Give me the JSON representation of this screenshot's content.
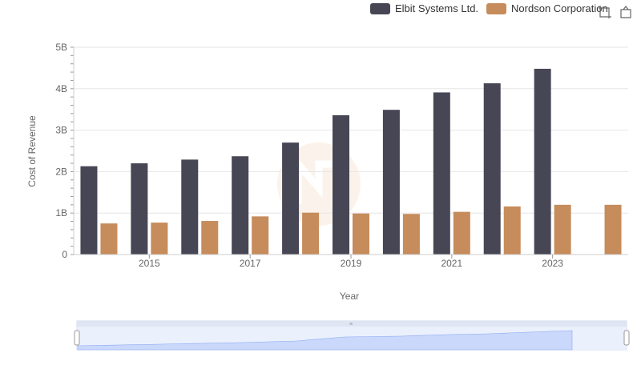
{
  "legend": {
    "items": [
      {
        "label": "Elbit Systems Ltd.",
        "color": "#474655"
      },
      {
        "label": "Nordson Corporation",
        "color": "#c68c5c"
      }
    ]
  },
  "toolbar": {
    "icons": [
      "zoom-select-icon",
      "zoom-reset-icon"
    ]
  },
  "chart_data": {
    "type": "bar",
    "title": "",
    "xlabel": "Year",
    "ylabel": "Cost of Revenue",
    "ylim": [
      0,
      5000000000
    ],
    "yticks": [
      "0",
      "1B",
      "2B",
      "3B",
      "4B",
      "5B"
    ],
    "xticks": [
      "2015",
      "2017",
      "2019",
      "2021",
      "2023"
    ],
    "categories": [
      "2014",
      "2015",
      "2016",
      "2017",
      "2018",
      "2019",
      "2020",
      "2021",
      "2022",
      "2023",
      "2024"
    ],
    "series": [
      {
        "name": "Elbit Systems Ltd.",
        "color": "#474655",
        "values": [
          2130000000,
          2200000000,
          2290000000,
          2370000000,
          2700000000,
          3360000000,
          3490000000,
          3910000000,
          4130000000,
          4480000000,
          null
        ]
      },
      {
        "name": "Nordson Corporation",
        "color": "#c68c5c",
        "values": [
          750000000,
          770000000,
          810000000,
          920000000,
          1010000000,
          990000000,
          980000000,
          1030000000,
          1160000000,
          1200000000,
          1200000000
        ]
      }
    ],
    "grid": true,
    "legend_position": "top-right"
  }
}
